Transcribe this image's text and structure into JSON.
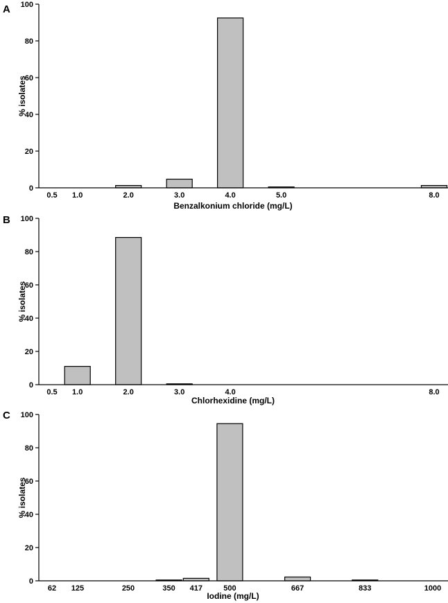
{
  "chart_data": [
    {
      "type": "bar",
      "panel": "A",
      "xlabel": "Benzalkonium chloride (mg/L)",
      "ylabel": "% isolates",
      "ylim": [
        0,
        100
      ],
      "yticks": [
        0,
        20,
        40,
        60,
        80,
        100
      ],
      "categories": [
        "0.5",
        "1.0",
        "2.0",
        "3.0",
        "4.0",
        "5.0",
        "8.0"
      ],
      "x": [
        0.5,
        1.0,
        2.0,
        3.0,
        4.0,
        5.0,
        8.0
      ],
      "values": [
        0,
        0,
        1.3,
        4.7,
        92.5,
        0.5,
        1.3
      ]
    },
    {
      "type": "bar",
      "panel": "B",
      "xlabel": "Chlorhexidine (mg/L)",
      "ylabel": "% isolates",
      "ylim": [
        0,
        100
      ],
      "yticks": [
        0,
        20,
        40,
        60,
        80,
        100
      ],
      "categories": [
        "0.5",
        "1.0",
        "2.0",
        "3.0",
        "4.0",
        "8.0"
      ],
      "x": [
        0.5,
        1.0,
        2.0,
        3.0,
        4.0,
        8.0
      ],
      "values": [
        0,
        11.0,
        88.5,
        0.5,
        0,
        0
      ]
    },
    {
      "type": "bar",
      "panel": "C",
      "xlabel": "Iodine (mg/L)",
      "ylabel": "% isolates",
      "ylim": [
        0,
        100
      ],
      "yticks": [
        0,
        20,
        40,
        60,
        80,
        100
      ],
      "categories": [
        "62",
        "125",
        "250",
        "350",
        "417",
        "500",
        "667",
        "833",
        "1000"
      ],
      "x": [
        62,
        125,
        250,
        350,
        417,
        500,
        667,
        833,
        1000
      ],
      "values": [
        0,
        0,
        0,
        0.5,
        1.5,
        94.5,
        2.3,
        0.5,
        0
      ]
    }
  ]
}
